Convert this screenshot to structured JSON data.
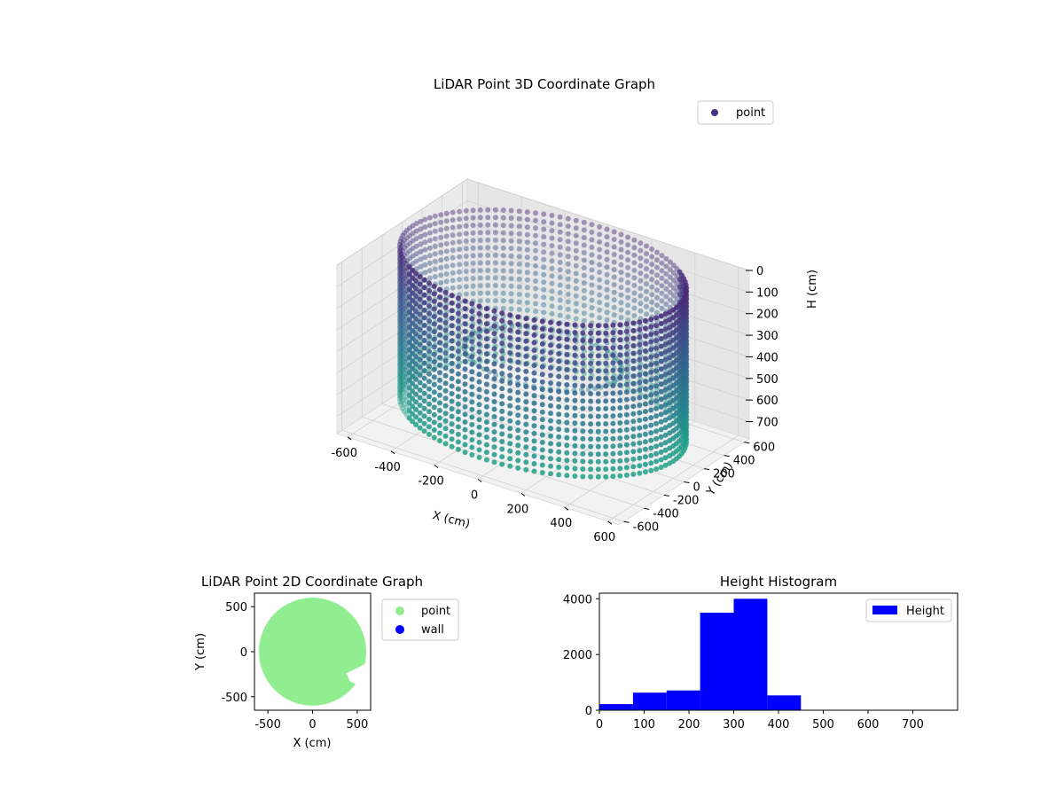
{
  "chart_data": [
    {
      "type": "scatter3d",
      "title": "LiDAR Point 3D Coordinate Graph",
      "xlabel": "X (cm)",
      "ylabel": "Y (cm)",
      "zlabel": "H (cm)",
      "xlim": [
        -650,
        650
      ],
      "ylim": [
        -650,
        650
      ],
      "zlim": [
        0,
        780
      ],
      "z_inverted": true,
      "xticks": [
        -600,
        -400,
        -200,
        0,
        200,
        400,
        600
      ],
      "yticks": [
        -600,
        -400,
        -200,
        0,
        200,
        400,
        600
      ],
      "zticks": [
        0,
        100,
        200,
        300,
        400,
        500,
        600,
        700
      ],
      "grid": true,
      "colormap": "viridis",
      "legend": {
        "entries": [
          "point"
        ],
        "placement": "top-right",
        "color": "#46337e"
      },
      "series": [
        {
          "name": "point",
          "shape": "cylindrical wall",
          "radius": 600,
          "h_range": [
            0,
            700
          ]
        }
      ]
    },
    {
      "type": "scatter",
      "title": "LiDAR Point 2D Coordinate Graph",
      "xlabel": "X (cm)",
      "ylabel": "Y (cm)",
      "xlim": [
        -650,
        650
      ],
      "ylim": [
        -650,
        650
      ],
      "xticks": [
        -500,
        0,
        500
      ],
      "yticks": [
        -500,
        0,
        500
      ],
      "legend": {
        "placement": "outside-right"
      },
      "series": [
        {
          "name": "point",
          "color": "#90ee90",
          "shape": "disc",
          "radius": 600
        },
        {
          "name": "wall",
          "color": "#0000ff",
          "points": []
        }
      ]
    },
    {
      "type": "histogram",
      "title": "Height Histogram",
      "xlim": [
        0,
        800
      ],
      "ylim": [
        0,
        4200
      ],
      "xticks": [
        0,
        100,
        200,
        300,
        400,
        500,
        600,
        700
      ],
      "yticks": [
        0,
        2000,
        4000
      ],
      "color": "#0000ff",
      "legend": {
        "entries": [
          "Height"
        ],
        "placement": "top-right"
      },
      "bin_edges": [
        0,
        75,
        150,
        225,
        300,
        375,
        450
      ],
      "values": [
        220,
        630,
        710,
        3500,
        4000,
        530
      ]
    }
  ]
}
